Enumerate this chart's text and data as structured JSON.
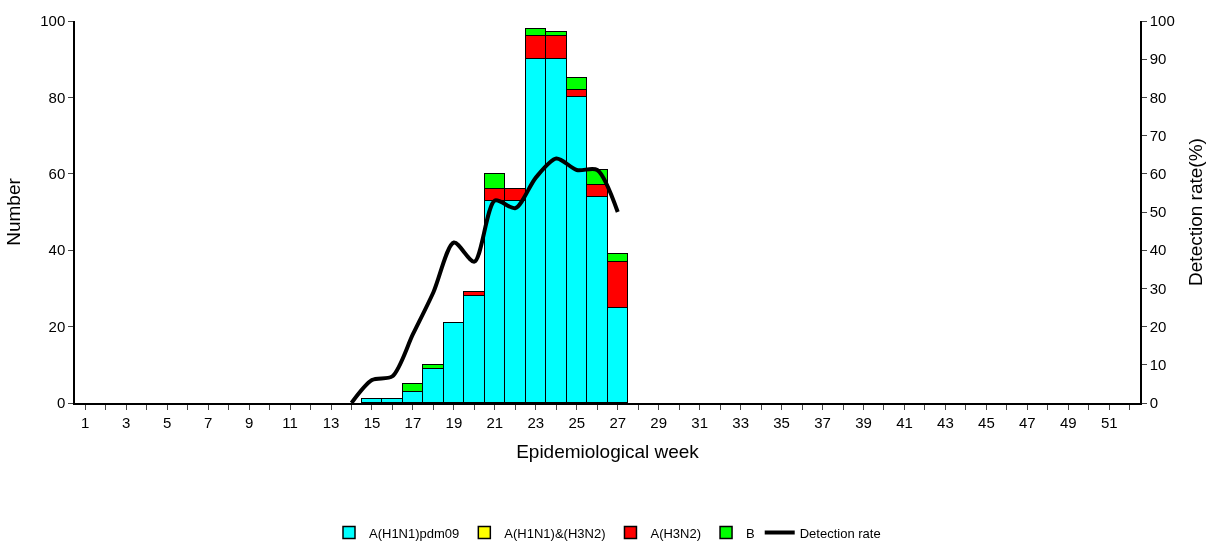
{
  "chart_data": {
    "type": "bar",
    "stacked": true,
    "xlabel": "Epidemiological week",
    "ylabel": "Number",
    "y2label": "Detection rate(%)",
    "x": [
      15,
      16,
      17,
      18,
      19,
      20,
      21,
      22,
      23,
      24,
      25,
      26,
      27
    ],
    "xlim": [
      0.5,
      52.5
    ],
    "xticks": [
      1,
      {
        "value": 2,
        "label": null
      },
      3,
      {
        "value": 4,
        "label": null
      },
      5,
      {
        "value": 6,
        "label": null
      },
      7,
      {
        "value": 8,
        "label": null
      },
      9,
      {
        "value": 10,
        "label": null
      },
      11,
      {
        "value": 12,
        "label": null
      },
      13,
      {
        "value": 14,
        "label": null
      },
      15,
      {
        "value": 16,
        "label": null
      },
      17,
      {
        "value": 18,
        "label": null
      },
      19,
      {
        "value": 20,
        "label": null
      },
      21,
      {
        "value": 22,
        "label": null
      },
      23,
      {
        "value": 24,
        "label": null
      },
      25,
      {
        "value": 26,
        "label": null
      },
      27,
      {
        "value": 28,
        "label": null
      },
      29,
      {
        "value": 30,
        "label": null
      },
      31,
      {
        "value": 32,
        "label": null
      },
      33,
      {
        "value": 34,
        "label": null
      },
      35,
      {
        "value": 36,
        "label": null
      },
      37,
      {
        "value": 38,
        "label": null
      },
      39,
      {
        "value": 40,
        "label": null
      },
      41,
      {
        "value": 42,
        "label": null
      },
      43,
      {
        "value": 44,
        "label": null
      },
      45,
      {
        "value": 46,
        "label": null
      },
      47,
      {
        "value": 48,
        "label": null
      },
      49,
      {
        "value": 50,
        "label": null
      },
      51,
      {
        "value": 52,
        "label": null
      }
    ],
    "ylim": [
      0,
      100
    ],
    "yticks": [
      0,
      20,
      40,
      60,
      80,
      100
    ],
    "y2lim": [
      0,
      100
    ],
    "y2ticks": [
      0,
      10,
      20,
      30,
      40,
      50,
      60,
      70,
      80,
      90,
      100
    ],
    "legend": "bottom",
    "series": [
      {
        "name": "A(H1N1)pdm09",
        "color": "#00ffff",
        "values": [
          1,
          1,
          3,
          9,
          21,
          28,
          53,
          53,
          90,
          90,
          80,
          54,
          25
        ]
      },
      {
        "name": "A(H1N1)&(H3N2)",
        "color": "#ffff00",
        "values": [
          null,
          null,
          null,
          null,
          null,
          null,
          null,
          null,
          null,
          null,
          null,
          null,
          null
        ]
      },
      {
        "name": "A(H3N2)",
        "color": "#ff0000",
        "values": [
          null,
          null,
          null,
          null,
          null,
          1,
          3,
          3,
          6,
          6,
          2,
          3,
          12
        ]
      },
      {
        "name": "B",
        "color": "#00ff00",
        "values": [
          null,
          null,
          2,
          1,
          null,
          null,
          4,
          null,
          2,
          1,
          3,
          4,
          2
        ]
      },
      {
        "name": "Detection rate",
        "type": "line",
        "axis": "y2",
        "color": "#000000",
        "x": [
          14,
          15,
          16,
          17,
          18,
          19,
          20,
          21,
          22,
          23,
          24,
          25,
          26,
          27
        ],
        "values": [
          0,
          6,
          7,
          18,
          29,
          42,
          37,
          53,
          51,
          59,
          64,
          61,
          61,
          50
        ]
      }
    ]
  }
}
